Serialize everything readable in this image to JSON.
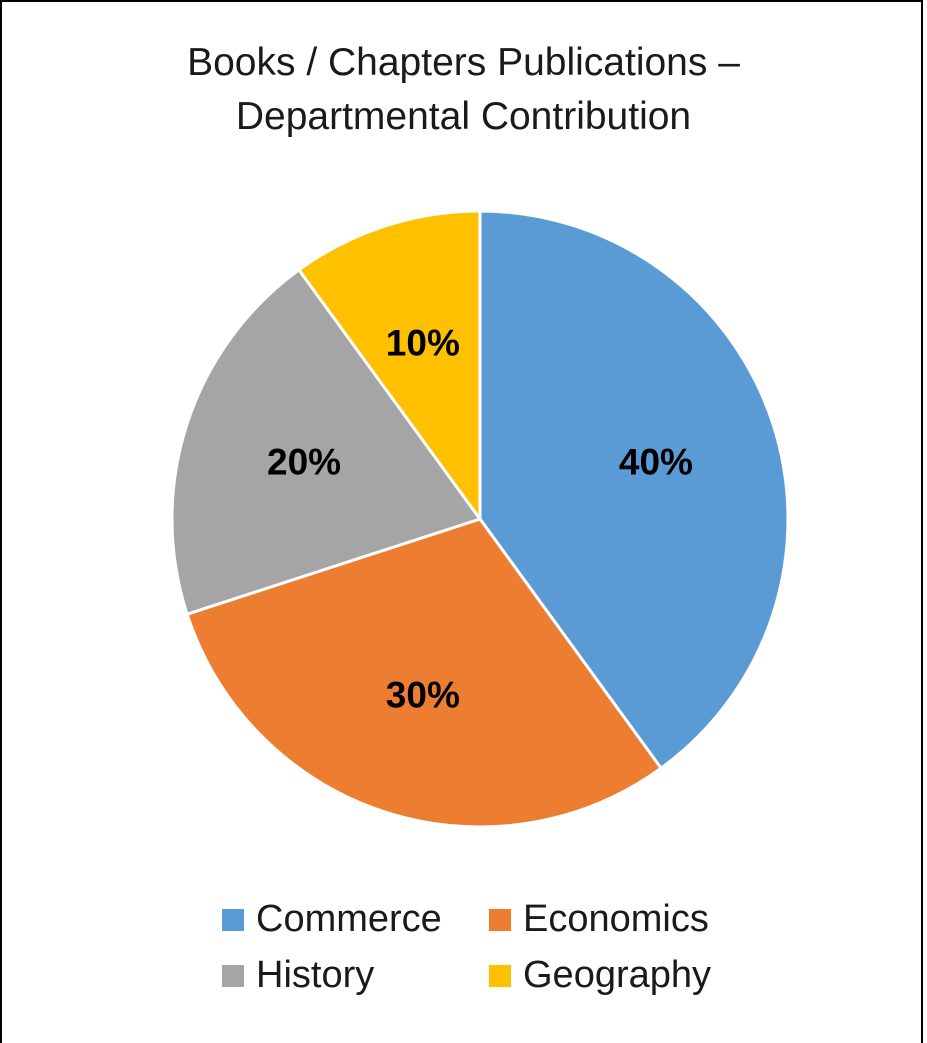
{
  "chart_data": {
    "type": "pie",
    "title_lines": [
      "Books / Chapters Publications –",
      "Departmental Contribution"
    ],
    "slices": [
      {
        "name": "Commerce",
        "value": 40,
        "label": "40%",
        "color": "#5B9BD5"
      },
      {
        "name": "Economics",
        "value": 30,
        "label": "30%",
        "color": "#ED7D31"
      },
      {
        "name": "History",
        "value": 20,
        "label": "20%",
        "color": "#A5A5A5"
      },
      {
        "name": "Geography",
        "value": 10,
        "label": "10%",
        "color": "#FFC000"
      }
    ],
    "legend_position": "bottom"
  }
}
